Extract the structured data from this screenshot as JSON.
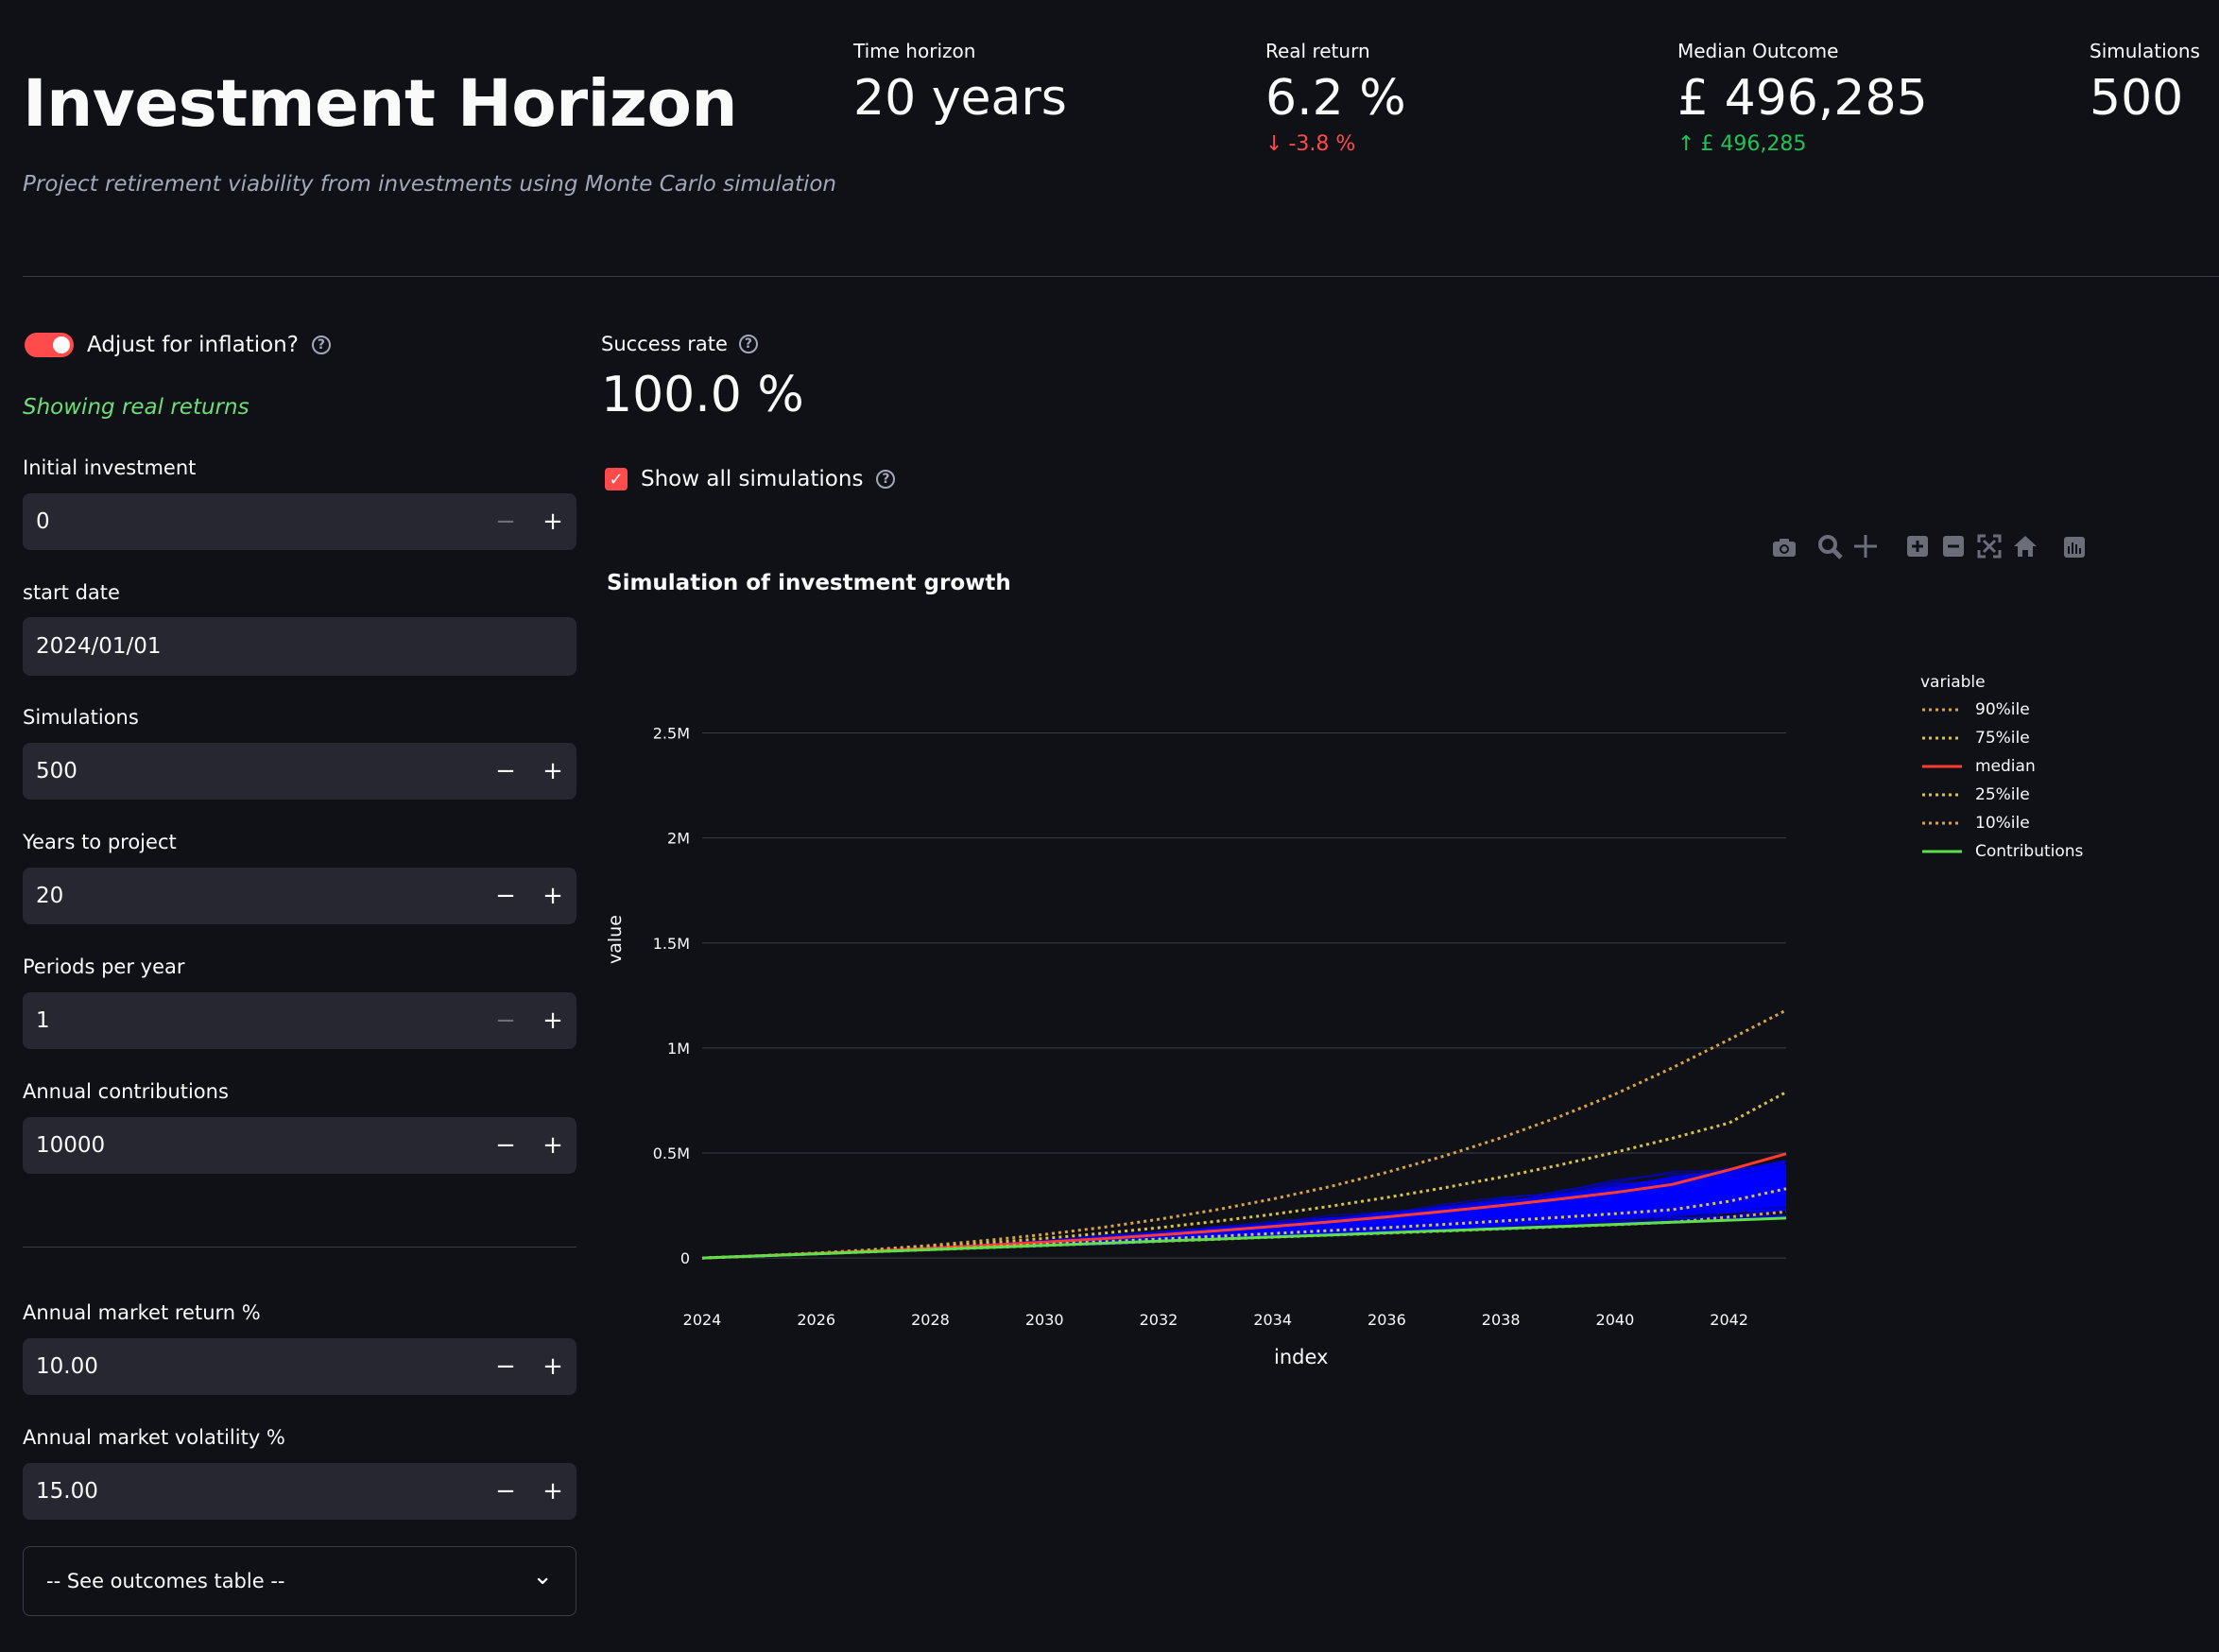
{
  "header": {
    "title": "Investment Horizon",
    "subtitle": "Project retirement viability from investments using Monte Carlo simulation"
  },
  "metrics": [
    {
      "label": "Time horizon",
      "value": "20 years",
      "delta": ""
    },
    {
      "label": "Real return",
      "value": "6.2 %",
      "delta": "-3.8 %",
      "direction": "down"
    },
    {
      "label": "Median Outcome",
      "value": "£ 496,285",
      "delta": "£ 496,285",
      "direction": "up"
    },
    {
      "label": "Simulations",
      "value": "500",
      "delta": ""
    }
  ],
  "sidebar": {
    "inflation_toggle": {
      "label": "Adjust for inflation?",
      "on": true
    },
    "inflation_note": "Showing real returns",
    "initial_investment": {
      "label": "Initial investment",
      "value": "0"
    },
    "start_date": {
      "label": "start date",
      "value": "2024/01/01"
    },
    "simulations": {
      "label": "Simulations",
      "value": "500"
    },
    "years": {
      "label": "Years to project",
      "value": "20"
    },
    "periods": {
      "label": "Periods per year",
      "value": "1"
    },
    "contributions": {
      "label": "Annual contributions",
      "value": "10000"
    },
    "market_return": {
      "label": "Annual market return %",
      "value": "10.00"
    },
    "market_volatility": {
      "label": "Annual market volatility %",
      "value": "15.00"
    },
    "outcomes_select": {
      "value": "-- See outcomes table --"
    }
  },
  "main": {
    "success_rate": {
      "label": "Success rate",
      "value": "100.0 %"
    },
    "show_all": {
      "label": "Show all simulations",
      "checked": true
    }
  },
  "icons": {
    "minus": "−",
    "plus": "+",
    "help": "?",
    "check": "✓",
    "chevron": "⌄",
    "arrow_down": "↓",
    "arrow_up": "↑"
  },
  "colors": {
    "accent": "#ff4b4b",
    "positive": "#21c354",
    "background": "#0f1117",
    "input": "#262730",
    "sim_lines": "#0000ff"
  },
  "chart_data": {
    "type": "line",
    "title": "Simulation of investment growth",
    "xlabel": "index",
    "ylabel": "value",
    "x": [
      2024,
      2025,
      2026,
      2027,
      2028,
      2029,
      2030,
      2031,
      2032,
      2033,
      2034,
      2035,
      2036,
      2037,
      2038,
      2039,
      2040,
      2041,
      2042,
      2043
    ],
    "x_ticks": [
      "2024",
      "2026",
      "2028",
      "2030",
      "2032",
      "2034",
      "2036",
      "2038",
      "2040",
      "2042"
    ],
    "y_ticks": [
      "0",
      "0.5M",
      "1M",
      "1.5M",
      "2M",
      "2.5M"
    ],
    "y_tick_values": [
      0,
      500000,
      1000000,
      1500000,
      2000000,
      2500000
    ],
    "xlim": [
      2024,
      2043
    ],
    "ylim": [
      -40000,
      2750000
    ],
    "grid": true,
    "legend_title": "variable",
    "legend_position": "right",
    "simulation_count": 500,
    "series": [
      {
        "name": "90%ile",
        "color": "#d9a441",
        "dash": "dot",
        "values": [
          0,
          11000,
          24000,
          40000,
          60000,
          84000,
          112000,
          145000,
          184000,
          229000,
          281000,
          340000,
          408000,
          485000,
          572000,
          670000,
          780000,
          905000,
          1040000,
          1180000
        ]
      },
      {
        "name": "75%ile",
        "color": "#d9c341",
        "dash": "dot",
        "values": [
          0,
          10700,
          23000,
          37000,
          53000,
          72000,
          93000,
          117000,
          144000,
          174000,
          208000,
          246000,
          288000,
          334000,
          385000,
          441000,
          503000,
          570000,
          643000,
          790000
        ]
      },
      {
        "name": "median",
        "color": "#ff3b2f",
        "dash": "solid",
        "values": [
          0,
          10400,
          21800,
          34000,
          47000,
          61000,
          76000,
          92000,
          110000,
          129000,
          150000,
          172000,
          196000,
          222000,
          250000,
          280000,
          312000,
          350000,
          420000,
          496285
        ]
      },
      {
        "name": "25%ile",
        "color": "#d9c341",
        "dash": "dot",
        "values": [
          0,
          10100,
          20700,
          31500,
          42500,
          53800,
          65500,
          77500,
          90000,
          103000,
          116500,
          130500,
          145000,
          160000,
          176000,
          193000,
          211000,
          230000,
          270000,
          330000
        ]
      },
      {
        "name": "10%ile",
        "color": "#d9a441",
        "dash": "dot",
        "values": [
          0,
          9900,
          19800,
          29700,
          39500,
          49300,
          59200,
          69000,
          78800,
          88700,
          98500,
          108400,
          118200,
          128000,
          138000,
          148000,
          158000,
          170000,
          195000,
          220000
        ]
      },
      {
        "name": "Contributions",
        "color": "#5ee04a",
        "dash": "solid",
        "values": [
          0,
          10000,
          20000,
          30000,
          40000,
          50000,
          60000,
          70000,
          80000,
          90000,
          100000,
          110000,
          120000,
          130000,
          140000,
          150000,
          160000,
          170000,
          180000,
          190000
        ]
      }
    ]
  }
}
